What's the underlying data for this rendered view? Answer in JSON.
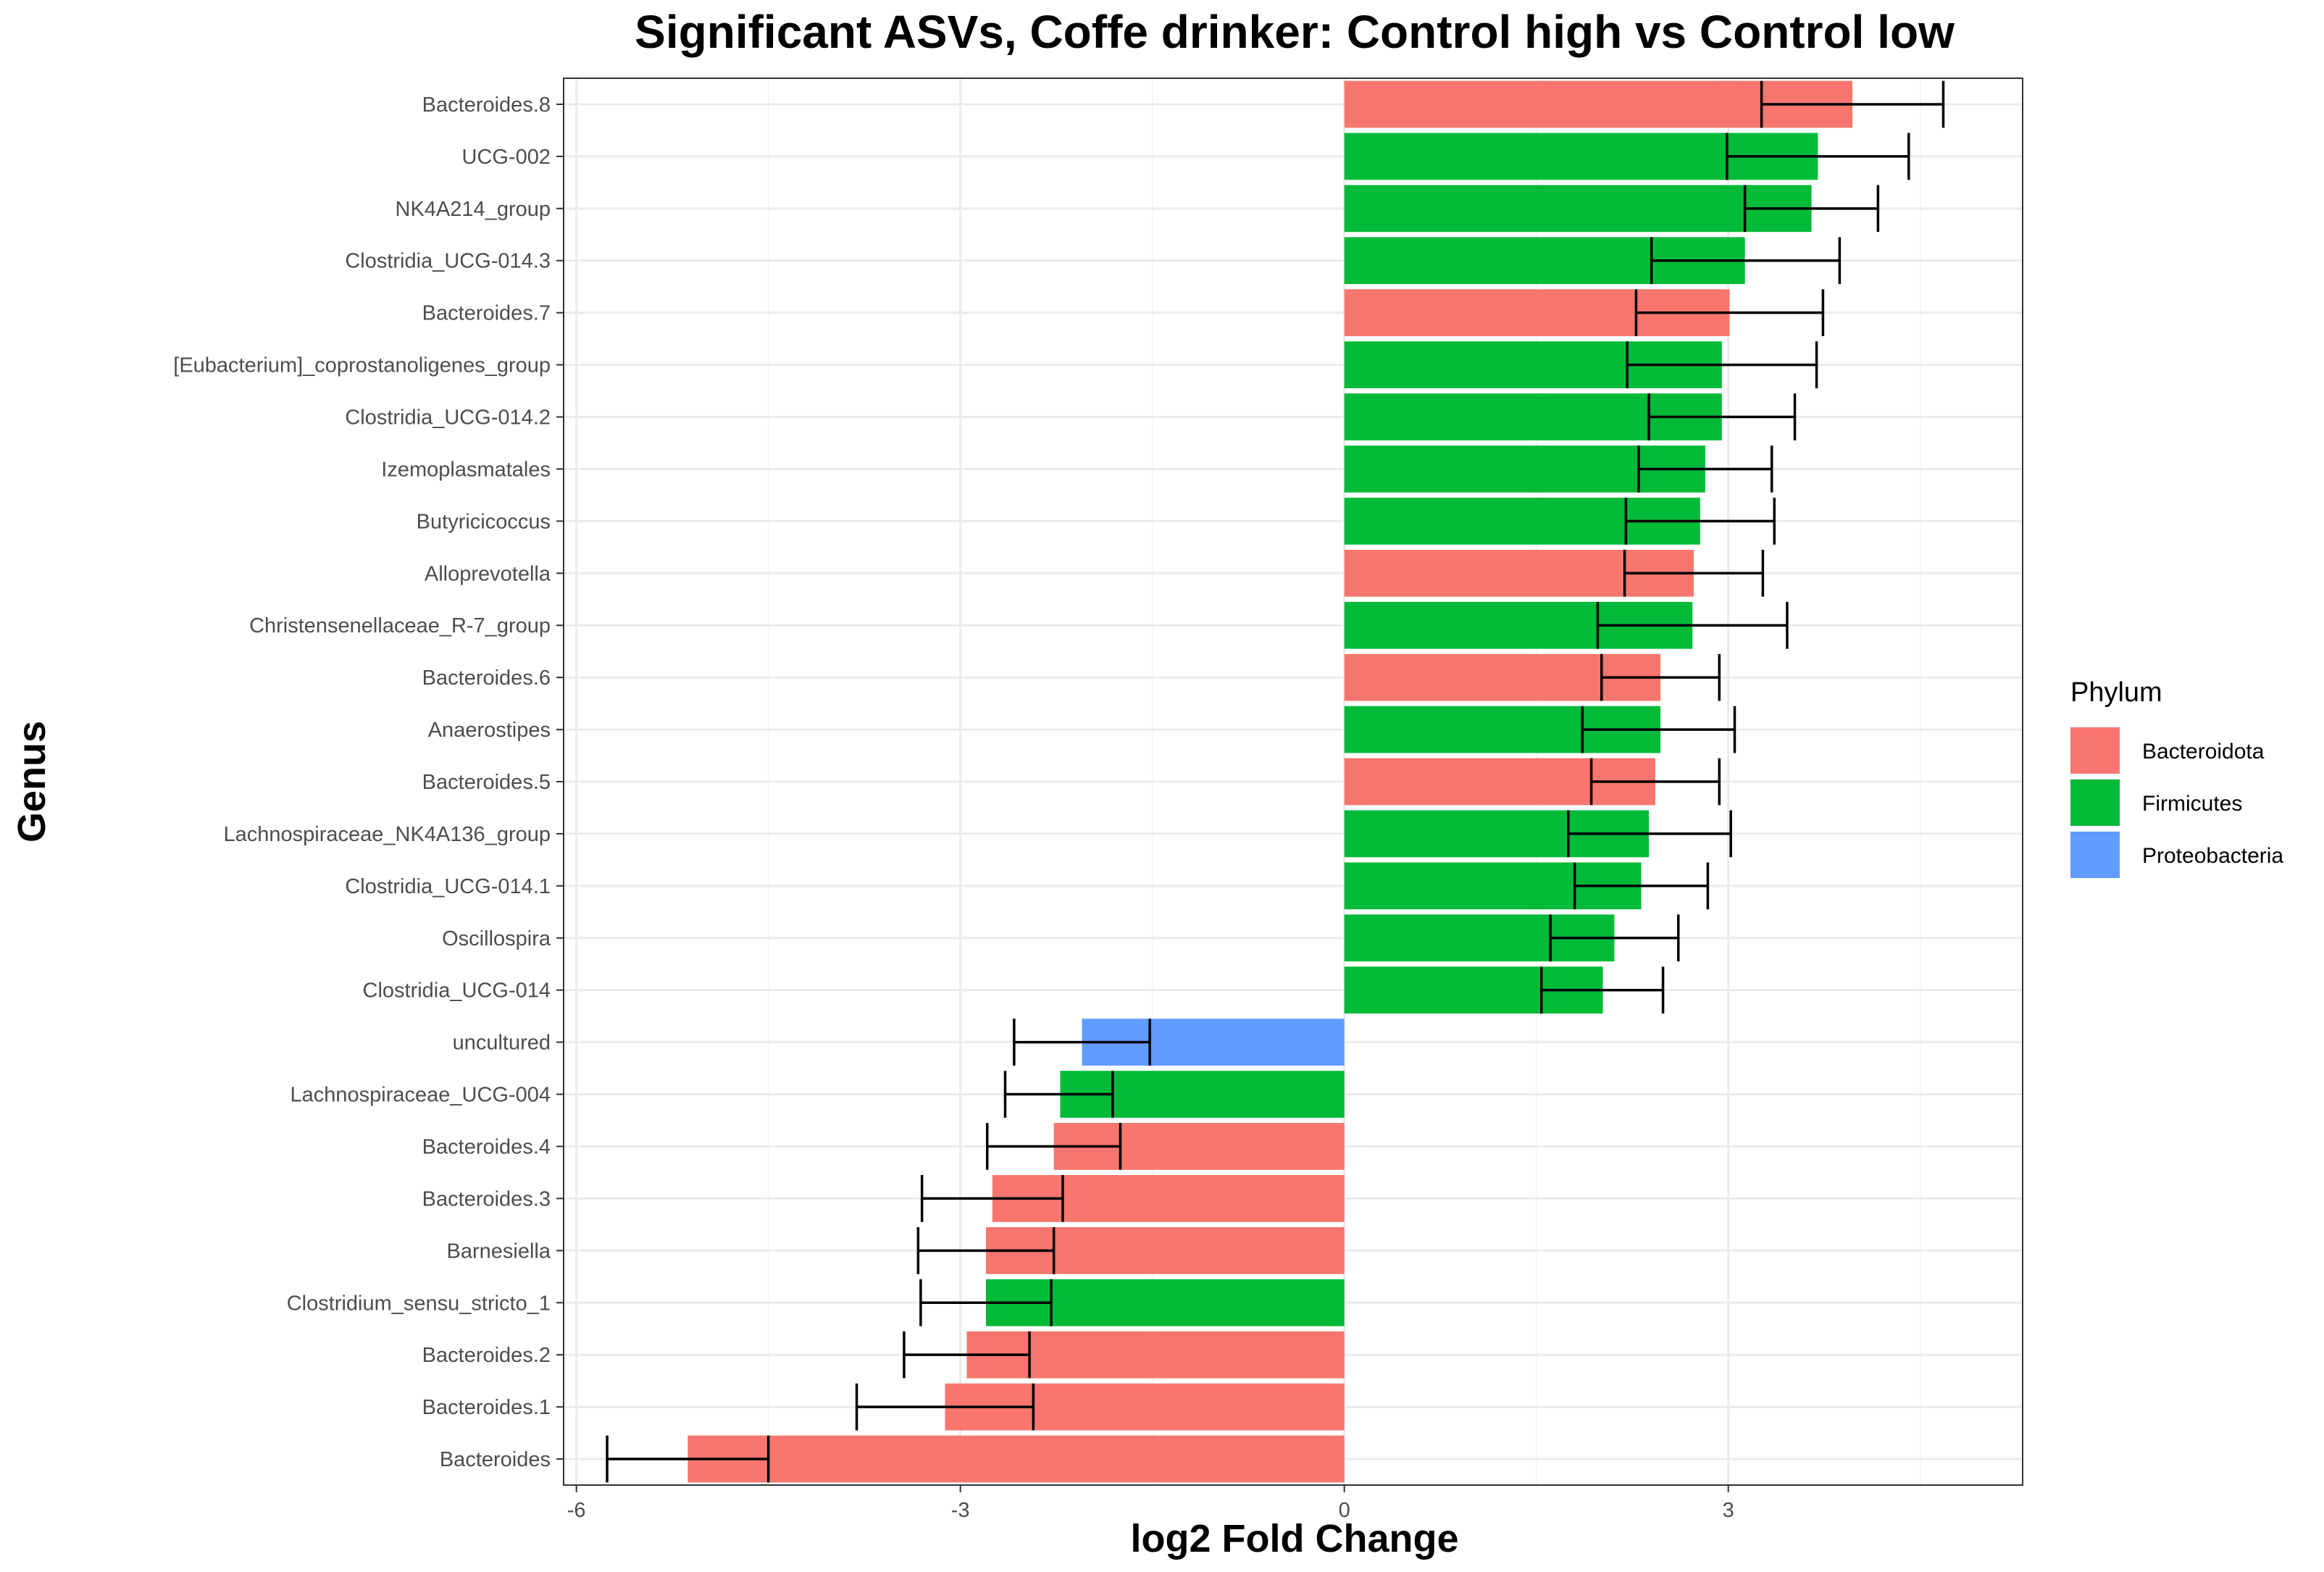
{
  "chart_data": {
    "type": "bar",
    "orientation": "horizontal",
    "title": "Significant ASVs, Coffe drinker: Control high vs Control low",
    "xlabel": "log2 Fold Change",
    "ylabel": "Genus",
    "xlim": [
      -6.1,
      5.3
    ],
    "xticks": [
      -6,
      -3,
      0,
      3
    ],
    "grid": true,
    "legend": {
      "title": "Phylum",
      "position": "right",
      "entries": [
        {
          "name": "Bacteroidota",
          "color": "#F8766D"
        },
        {
          "name": "Firmicutes",
          "color": "#00BA38"
        },
        {
          "name": "Proteobacteria",
          "color": "#619CFF"
        }
      ]
    },
    "categories": [
      "Bacteroides.8",
      "UCG-002",
      "NK4A214_group",
      "Clostridia_UCG-014.3",
      "Bacteroides.7",
      "[Eubacterium]_coprostanoligenes_group",
      "Clostridia_UCG-014.2",
      "Izemoplasmatales",
      "Butyricicoccus",
      "Alloprevotella",
      "Christensenellaceae_R-7_group",
      "Bacteroides.6",
      "Anaerostipes",
      "Bacteroides.5",
      "Lachnospiraceae_NK4A136_group",
      "Clostridia_UCG-014.1",
      "Oscillospira",
      "Clostridia_UCG-014",
      "uncultured",
      "Lachnospiraceae_UCG-004",
      "Bacteroides.4",
      "Bacteroides.3",
      "Barnesiella",
      "Clostridium_sensu_stricto_1",
      "Bacteroides.2",
      "Bacteroides.1",
      "Bacteroides"
    ],
    "values": [
      3.97,
      3.7,
      3.65,
      3.13,
      3.01,
      2.95,
      2.95,
      2.82,
      2.78,
      2.73,
      2.72,
      2.47,
      2.47,
      2.43,
      2.38,
      2.32,
      2.11,
      2.02,
      -2.05,
      -2.22,
      -2.27,
      -2.75,
      -2.8,
      -2.8,
      -2.95,
      -3.12,
      -5.13
    ],
    "error_low": [
      3.26,
      2.99,
      3.13,
      2.4,
      2.28,
      2.21,
      2.38,
      2.3,
      2.2,
      2.19,
      1.98,
      2.01,
      1.86,
      1.93,
      1.75,
      1.8,
      1.61,
      1.54,
      -1.52,
      -1.81,
      -1.75,
      -2.2,
      -2.27,
      -2.29,
      -2.46,
      -2.43,
      -4.5
    ],
    "error_high": [
      4.68,
      4.41,
      4.17,
      3.87,
      3.74,
      3.69,
      3.52,
      3.34,
      3.36,
      3.27,
      3.46,
      2.93,
      3.05,
      2.93,
      3.02,
      2.84,
      2.61,
      2.49,
      -2.58,
      -2.65,
      -2.79,
      -3.3,
      -3.33,
      -3.31,
      -3.44,
      -3.81,
      -5.76
    ],
    "phylum": [
      "Bacteroidota",
      "Firmicutes",
      "Firmicutes",
      "Firmicutes",
      "Bacteroidota",
      "Firmicutes",
      "Firmicutes",
      "Firmicutes",
      "Firmicutes",
      "Bacteroidota",
      "Firmicutes",
      "Bacteroidota",
      "Firmicutes",
      "Bacteroidota",
      "Firmicutes",
      "Firmicutes",
      "Firmicutes",
      "Firmicutes",
      "Proteobacteria",
      "Firmicutes",
      "Bacteroidota",
      "Bacteroidota",
      "Bacteroidota",
      "Firmicutes",
      "Bacteroidota",
      "Bacteroidota",
      "Bacteroidota"
    ]
  }
}
